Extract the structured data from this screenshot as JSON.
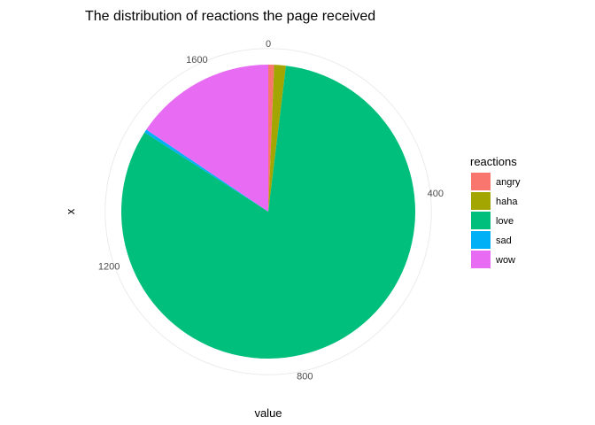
{
  "chart_data": {
    "type": "pie",
    "title": "The distribution of reactions the page received",
    "xlabel": "value",
    "ylabel": "x",
    "theta_axis": {
      "range": [
        0,
        1720
      ],
      "ticks": [
        0,
        400,
        800,
        1200,
        1600
      ]
    },
    "legend": {
      "title": "reactions",
      "position": "right"
    },
    "categories": [
      "angry",
      "haha",
      "love",
      "sad",
      "wow"
    ],
    "values": [
      11,
      22,
      1413,
      6,
      268
    ],
    "colors": [
      "#F8766D",
      "#A3A500",
      "#00BF7D",
      "#00B0F6",
      "#E76BF3"
    ],
    "grid": true
  }
}
